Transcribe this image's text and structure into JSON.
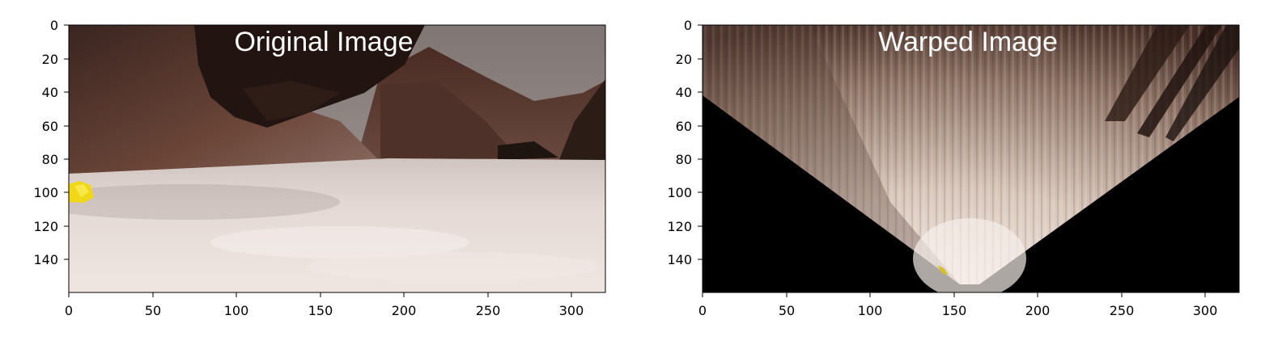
{
  "panels": [
    {
      "title": "Original Image",
      "image": "rover camera view of a rocky canyon with light sandy ground and a yellow rock sample at left",
      "x_ticks": [
        "0",
        "50",
        "100",
        "150",
        "200",
        "250",
        "300"
      ],
      "y_ticks": [
        "0",
        "20",
        "40",
        "60",
        "80",
        "100",
        "120",
        "140"
      ]
    },
    {
      "title": "Warped Image",
      "image": "perspective-transformed top-down view forming a fan-shaped region on a black background",
      "x_ticks": [
        "0",
        "50",
        "100",
        "150",
        "200",
        "250",
        "300"
      ],
      "y_ticks": [
        "0",
        "20",
        "40",
        "60",
        "80",
        "100",
        "120",
        "140"
      ]
    }
  ],
  "axis_range": {
    "x": [
      0,
      320
    ],
    "y": [
      0,
      160
    ]
  },
  "colors": {
    "sky": "#8a807e",
    "rock_dark": "#2a1a14",
    "rock_mid": "#5a3a30",
    "ground": "#e6dcd8",
    "sample": "#f0d818",
    "warp_background": "#000000"
  }
}
